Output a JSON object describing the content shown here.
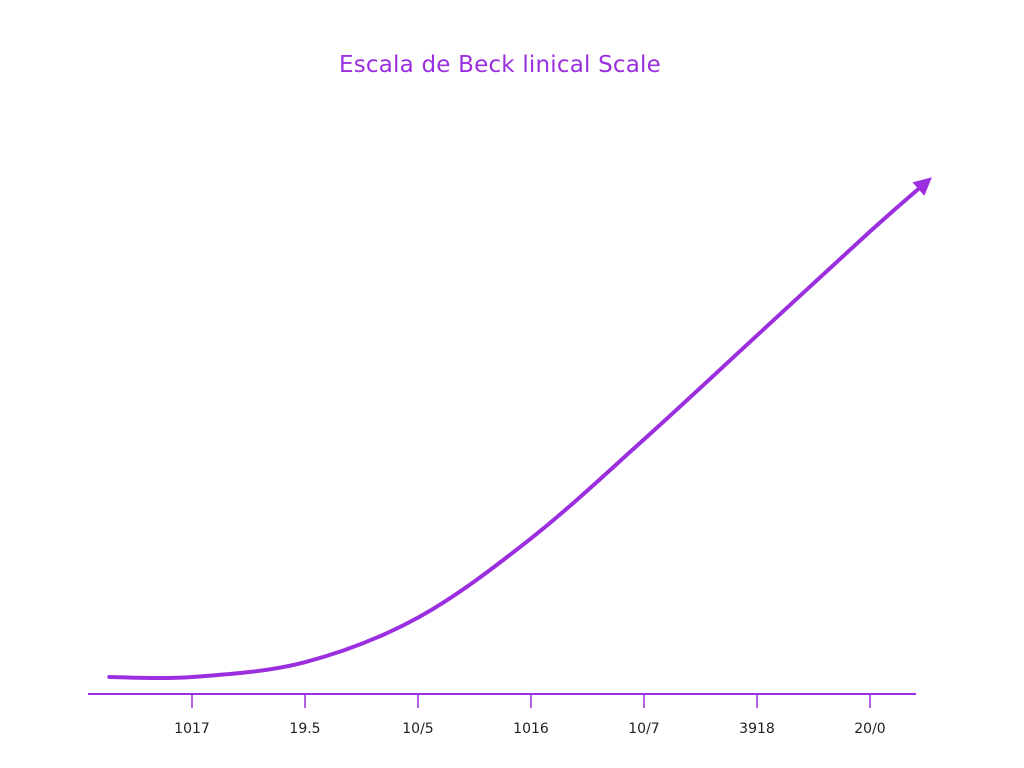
{
  "chart_data": {
    "type": "line",
    "title": "Escala de Beck linical Scale",
    "xlabel": "",
    "ylabel": "",
    "x_ticks": [
      "1017",
      "19.5",
      "10/5",
      "1016",
      "10/7",
      "3918",
      "20/0"
    ],
    "x": [
      0,
      1,
      2,
      3,
      4,
      5,
      6,
      6.5
    ],
    "y": [
      0.0,
      0.03,
      0.12,
      0.28,
      0.48,
      0.69,
      0.9,
      1.0
    ],
    "xlim": [
      -0.75,
      6.5
    ],
    "ylim": [
      0,
      1
    ],
    "grid": false,
    "legend": "none",
    "arrow_end": true,
    "color": "#9b2fe0"
  }
}
